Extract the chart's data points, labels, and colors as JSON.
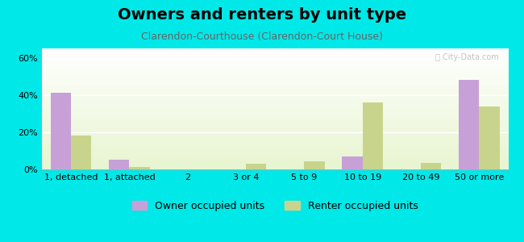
{
  "title": "Owners and renters by unit type",
  "subtitle": "Clarendon-Courthouse (Clarendon-Court House)",
  "categories": [
    "1, detached",
    "1, attached",
    "2",
    "3 or 4",
    "5 to 9",
    "10 to 19",
    "20 to 49",
    "50 or more"
  ],
  "owner_values": [
    41,
    5,
    0,
    0,
    0,
    7,
    0,
    48
  ],
  "renter_values": [
    18,
    1.5,
    0,
    3,
    4.5,
    36,
    3.5,
    34
  ],
  "owner_color": "#c8a0d8",
  "renter_color": "#c8d48c",
  "ylim": [
    0,
    65
  ],
  "yticks": [
    0,
    20,
    40,
    60
  ],
  "ytick_labels": [
    "0%",
    "20%",
    "40%",
    "60%"
  ],
  "background_color": "#00e8e8",
  "legend_owner": "Owner occupied units",
  "legend_renter": "Renter occupied units",
  "bar_width": 0.35,
  "title_fontsize": 14,
  "subtitle_fontsize": 9,
  "axis_fontsize": 8,
  "legend_fontsize": 9
}
